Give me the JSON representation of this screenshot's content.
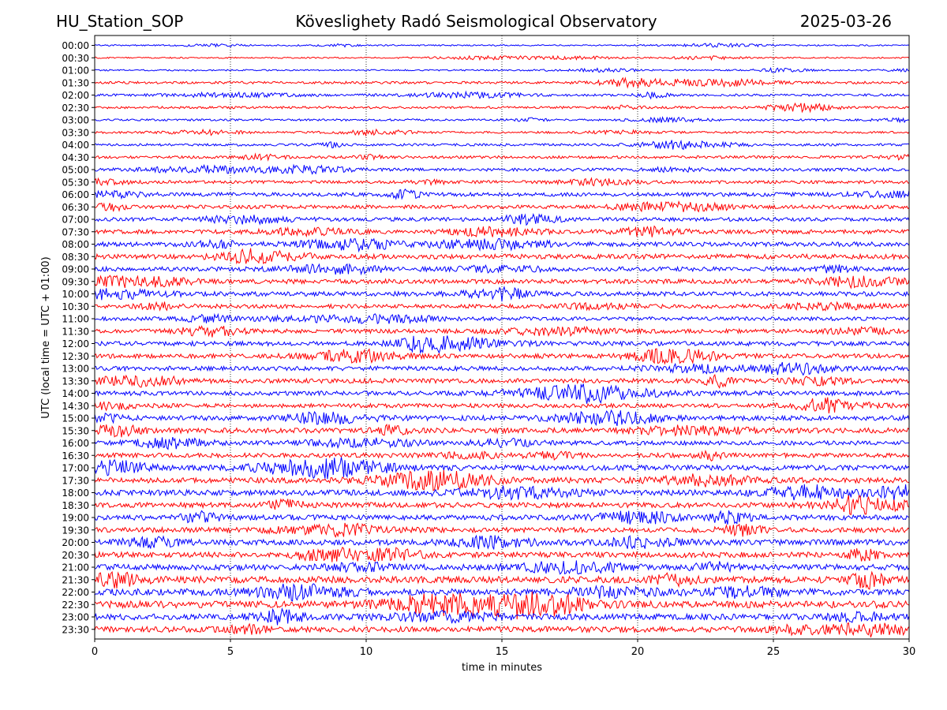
{
  "header": {
    "station": "HU_Station_SOP",
    "observatory": "Köveslighety Radó Seismological Observatory",
    "date": "2025-03-26"
  },
  "chart_data": {
    "type": "line",
    "title": "Köveslighety Radó Seismological Observatory",
    "xlabel": "time in minutes",
    "ylabel": "UTC (local time = UTC + 01:00)",
    "xlim": [
      0,
      30
    ],
    "x_ticks": [
      "0",
      "5",
      "10",
      "15",
      "20",
      "25",
      "30"
    ],
    "grid": "vertical dotted lines at 5-minute ticks",
    "row_colors": [
      "#0000ff",
      "#ff0000"
    ],
    "rows": [
      {
        "label": "00:00",
        "amplitude": 0.1
      },
      {
        "label": "00:30",
        "amplitude": 0.1
      },
      {
        "label": "01:00",
        "amplitude": 0.11
      },
      {
        "label": "01:30",
        "amplitude": 0.18
      },
      {
        "label": "02:00",
        "amplitude": 0.17
      },
      {
        "label": "02:30",
        "amplitude": 0.17
      },
      {
        "label": "03:00",
        "amplitude": 0.15
      },
      {
        "label": "03:30",
        "amplitude": 0.15
      },
      {
        "label": "04:00",
        "amplitude": 0.18
      },
      {
        "label": "04:30",
        "amplitude": 0.2
      },
      {
        "label": "05:00",
        "amplitude": 0.22
      },
      {
        "label": "05:30",
        "amplitude": 0.22
      },
      {
        "label": "06:00",
        "amplitude": 0.28
      },
      {
        "label": "06:30",
        "amplitude": 0.27
      },
      {
        "label": "07:00",
        "amplitude": 0.28
      },
      {
        "label": "07:30",
        "amplitude": 0.3
      },
      {
        "label": "08:00",
        "amplitude": 0.33
      },
      {
        "label": "08:30",
        "amplitude": 0.35
      },
      {
        "label": "09:00",
        "amplitude": 0.32
      },
      {
        "label": "09:30",
        "amplitude": 0.33
      },
      {
        "label": "10:00",
        "amplitude": 0.32
      },
      {
        "label": "10:30",
        "amplitude": 0.3
      },
      {
        "label": "11:00",
        "amplitude": 0.28
      },
      {
        "label": "11:30",
        "amplitude": 0.3
      },
      {
        "label": "12:00",
        "amplitude": 0.32
      },
      {
        "label": "12:30",
        "amplitude": 0.32
      },
      {
        "label": "13:00",
        "amplitude": 0.32
      },
      {
        "label": "13:30",
        "amplitude": 0.33
      },
      {
        "label": "14:00",
        "amplitude": 0.33
      },
      {
        "label": "14:30",
        "amplitude": 0.3
      },
      {
        "label": "15:00",
        "amplitude": 0.36
      },
      {
        "label": "15:30",
        "amplitude": 0.38
      },
      {
        "label": "16:00",
        "amplitude": 0.32
      },
      {
        "label": "16:30",
        "amplitude": 0.33
      },
      {
        "label": "17:00",
        "amplitude": 0.38
      },
      {
        "label": "17:30",
        "amplitude": 0.4
      },
      {
        "label": "18:00",
        "amplitude": 0.4
      },
      {
        "label": "18:30",
        "amplitude": 0.38
      },
      {
        "label": "19:00",
        "amplitude": 0.38
      },
      {
        "label": "19:30",
        "amplitude": 0.36
      },
      {
        "label": "20:00",
        "amplitude": 0.4
      },
      {
        "label": "20:30",
        "amplitude": 0.4
      },
      {
        "label": "21:00",
        "amplitude": 0.42
      },
      {
        "label": "21:30",
        "amplitude": 0.48
      },
      {
        "label": "22:00",
        "amplitude": 0.48
      },
      {
        "label": "22:30",
        "amplitude": 0.5
      },
      {
        "label": "23:00",
        "amplitude": 0.44
      },
      {
        "label": "23:30",
        "amplitude": 0.4
      }
    ]
  }
}
